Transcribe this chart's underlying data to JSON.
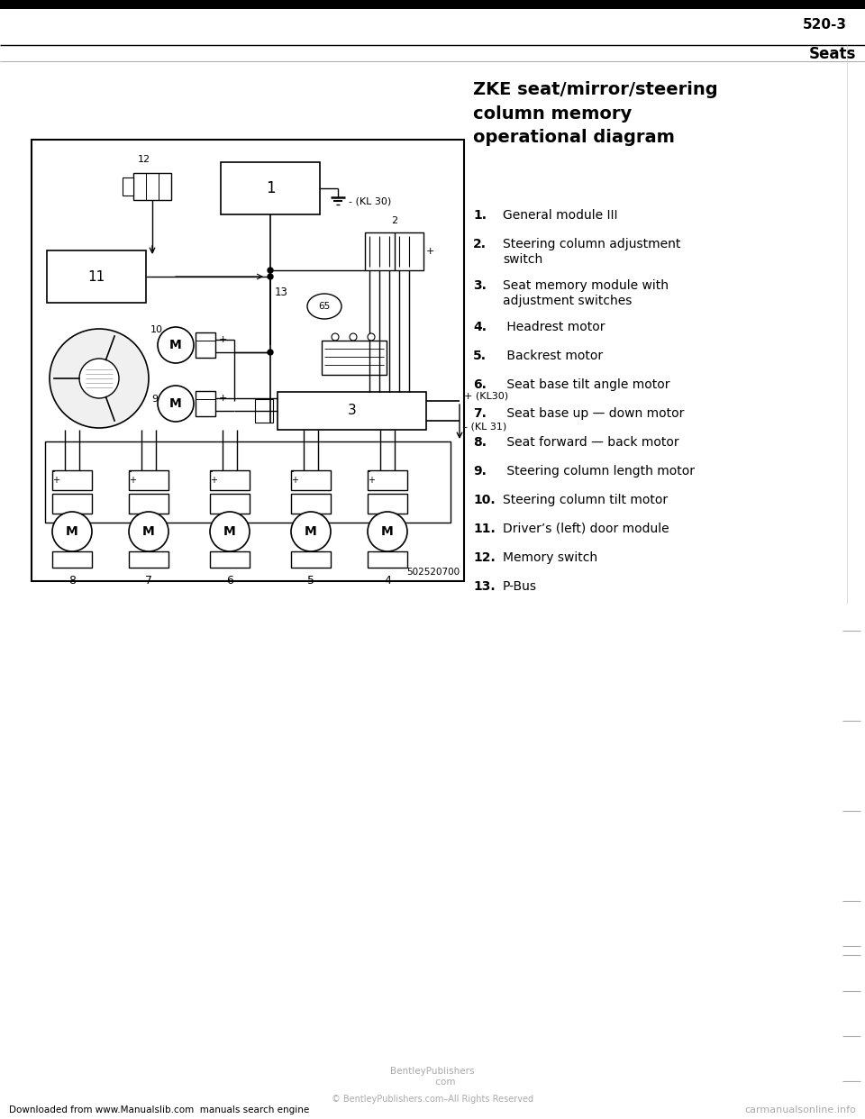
{
  "page_number": "520-3",
  "section_title": "Seats",
  "diagram_title": "ZKE seat/mirror/steering\ncolumn memory\noperational diagram",
  "legend_items": [
    {
      "num": "1.",
      "text": "General module III"
    },
    {
      "num": "2.",
      "text": "Steering column adjustment\nswitch"
    },
    {
      "num": "3.",
      "text": "Seat memory module with\nadjustment switches"
    },
    {
      "num": "4.",
      "text": " Headrest motor"
    },
    {
      "num": "5.",
      "text": " Backrest motor"
    },
    {
      "num": "6.",
      "text": " Seat base tilt angle motor"
    },
    {
      "num": "7.",
      "text": " Seat base up — down motor"
    },
    {
      "num": "8.",
      "text": " Seat forward — back motor"
    },
    {
      "num": "9.",
      "text": " Steering column length motor"
    },
    {
      "num": "10.",
      "text": "Steering column tilt motor"
    },
    {
      "num": "11.",
      "text": "Driver’s (left) door module"
    },
    {
      "num": "12.",
      "text": "Memory switch"
    },
    {
      "num": "13.",
      "text": "P-Bus"
    }
  ],
  "footer_text": "Downloaded from www.Manualslib.com  manuals search engine",
  "copyright_text": "© BentleyPublishers.com–All Rights Reserved",
  "watermark_right": "carmanualsonline.info",
  "bg_color": "#ffffff"
}
